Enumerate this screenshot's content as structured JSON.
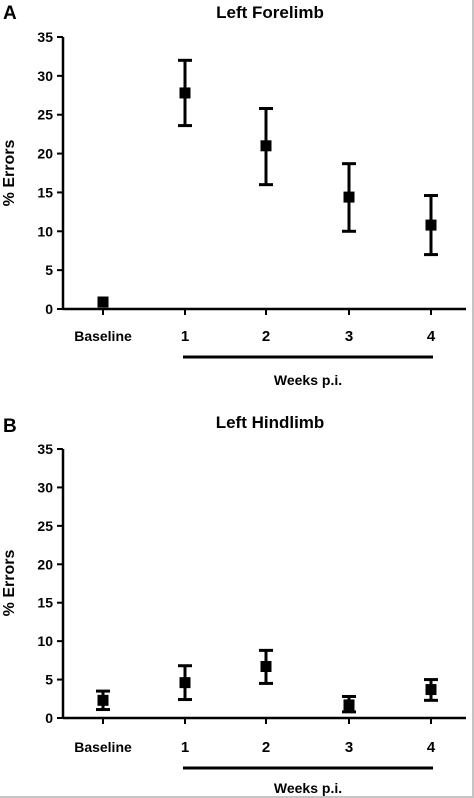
{
  "chart_data": [
    {
      "panel": "A",
      "type": "scatter",
      "title": "Left Forelimb",
      "ylabel": "% Errors",
      "categories": [
        "Baseline",
        "1",
        "2",
        "3",
        "4"
      ],
      "yticks": [
        "0",
        "5",
        "10",
        "15",
        "20",
        "25",
        "30",
        "35"
      ],
      "ylim": [
        0,
        35
      ],
      "group_label": "Weeks p.i.",
      "series": [
        {
          "values": [
            0.9,
            27.8,
            21.0,
            14.4,
            10.8
          ],
          "error_low": [
            0.9,
            23.6,
            16.0,
            10.0,
            7.0
          ],
          "error_high": [
            0.9,
            32.0,
            25.8,
            18.7,
            14.6
          ]
        }
      ]
    },
    {
      "panel": "B",
      "type": "scatter",
      "title": "Left Hindlimb",
      "ylabel": "% Errors",
      "categories": [
        "Baseline",
        "1",
        "2",
        "3",
        "4"
      ],
      "yticks": [
        "0",
        "5",
        "10",
        "15",
        "20",
        "25",
        "30",
        "35"
      ],
      "ylim": [
        0,
        35
      ],
      "group_label": "Weeks p.i.",
      "series": [
        {
          "values": [
            2.3,
            4.6,
            6.7,
            1.7,
            3.7
          ],
          "error_low": [
            1.1,
            2.4,
            4.5,
            0.8,
            2.3
          ],
          "error_high": [
            3.5,
            6.8,
            8.8,
            2.8,
            5.0
          ]
        }
      ]
    }
  ]
}
